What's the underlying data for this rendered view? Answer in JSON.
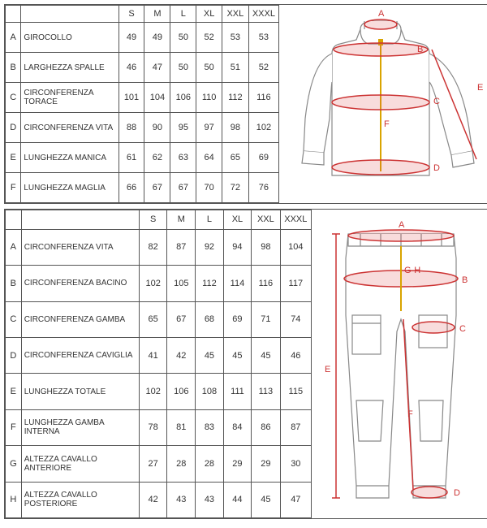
{
  "colors": {
    "border": "#555555",
    "text": "#333333",
    "accent": "#cc3333",
    "accent_fill": "rgba(220,80,80,0.25)",
    "garment_stroke": "#888888",
    "garment_fill": "#ffffff",
    "zipper": "#d9a400",
    "background": "#ffffff"
  },
  "sizes": [
    "S",
    "M",
    "L",
    "XL",
    "XXL",
    "XXXL"
  ],
  "table1": {
    "type": "table",
    "columns": [
      "",
      "",
      "S",
      "M",
      "L",
      "XL",
      "XXL",
      "XXXL"
    ],
    "rows": [
      {
        "letter": "A",
        "label": "GIROCOLLO",
        "values": [
          49,
          49,
          50,
          52,
          53,
          53
        ]
      },
      {
        "letter": "B",
        "label": "LARGHEZZA SPALLE",
        "values": [
          46,
          47,
          50,
          50,
          51,
          52
        ]
      },
      {
        "letter": "C",
        "label": "CIRCONFERENZA TORACE",
        "values": [
          101,
          104,
          106,
          110,
          112,
          116
        ]
      },
      {
        "letter": "D",
        "label": "CIRCONFERENZA VITA",
        "values": [
          88,
          90,
          95,
          97,
          98,
          102
        ]
      },
      {
        "letter": "E",
        "label": "LUNGHEZZA MANICA",
        "values": [
          61,
          62,
          63,
          64,
          65,
          69
        ]
      },
      {
        "letter": "F",
        "label": "LUNGHEZZA MAGLIA",
        "values": [
          66,
          67,
          67,
          70,
          72,
          76
        ]
      }
    ]
  },
  "table2": {
    "type": "table",
    "columns": [
      "",
      "",
      "S",
      "M",
      "L",
      "XL",
      "XXL",
      "XXXL"
    ],
    "rows": [
      {
        "letter": "A",
        "label": "CIRCONFERENZA VITA",
        "values": [
          82,
          87,
          92,
          94,
          98,
          104
        ]
      },
      {
        "letter": "B",
        "label": "CIRCONFERENZA BACINO",
        "values": [
          102,
          105,
          112,
          114,
          116,
          117
        ]
      },
      {
        "letter": "C",
        "label": "CIRCONFERENZA GAMBA",
        "values": [
          65,
          67,
          68,
          69,
          71,
          74
        ]
      },
      {
        "letter": "D",
        "label": "CIRCONFERENZA CAVIGLIA",
        "values": [
          41,
          42,
          45,
          45,
          45,
          46
        ]
      },
      {
        "letter": "E",
        "label": "LUNGHEZZA TOTALE",
        "values": [
          102,
          106,
          108,
          111,
          113,
          115
        ]
      },
      {
        "letter": "F",
        "label": "LUNGHEZZA GAMBA INTERNA",
        "values": [
          78,
          81,
          83,
          84,
          86,
          87
        ]
      },
      {
        "letter": "G",
        "label": "ALTEZZA CAVALLO ANTERIORE",
        "values": [
          27,
          28,
          28,
          29,
          29,
          30
        ]
      },
      {
        "letter": "H",
        "label": "ALTEZZA CAVALLO POSTERIORE",
        "values": [
          42,
          43,
          43,
          44,
          45,
          47
        ]
      }
    ]
  },
  "diagram1": {
    "labels": {
      "A": "A",
      "B": "B",
      "C": "C",
      "D": "D",
      "E": "E",
      "F": "F"
    }
  },
  "diagram2": {
    "labels": {
      "A": "A",
      "B": "B",
      "C": "C",
      "D": "D",
      "E": "E",
      "F": "F",
      "GH": "G-H"
    }
  }
}
